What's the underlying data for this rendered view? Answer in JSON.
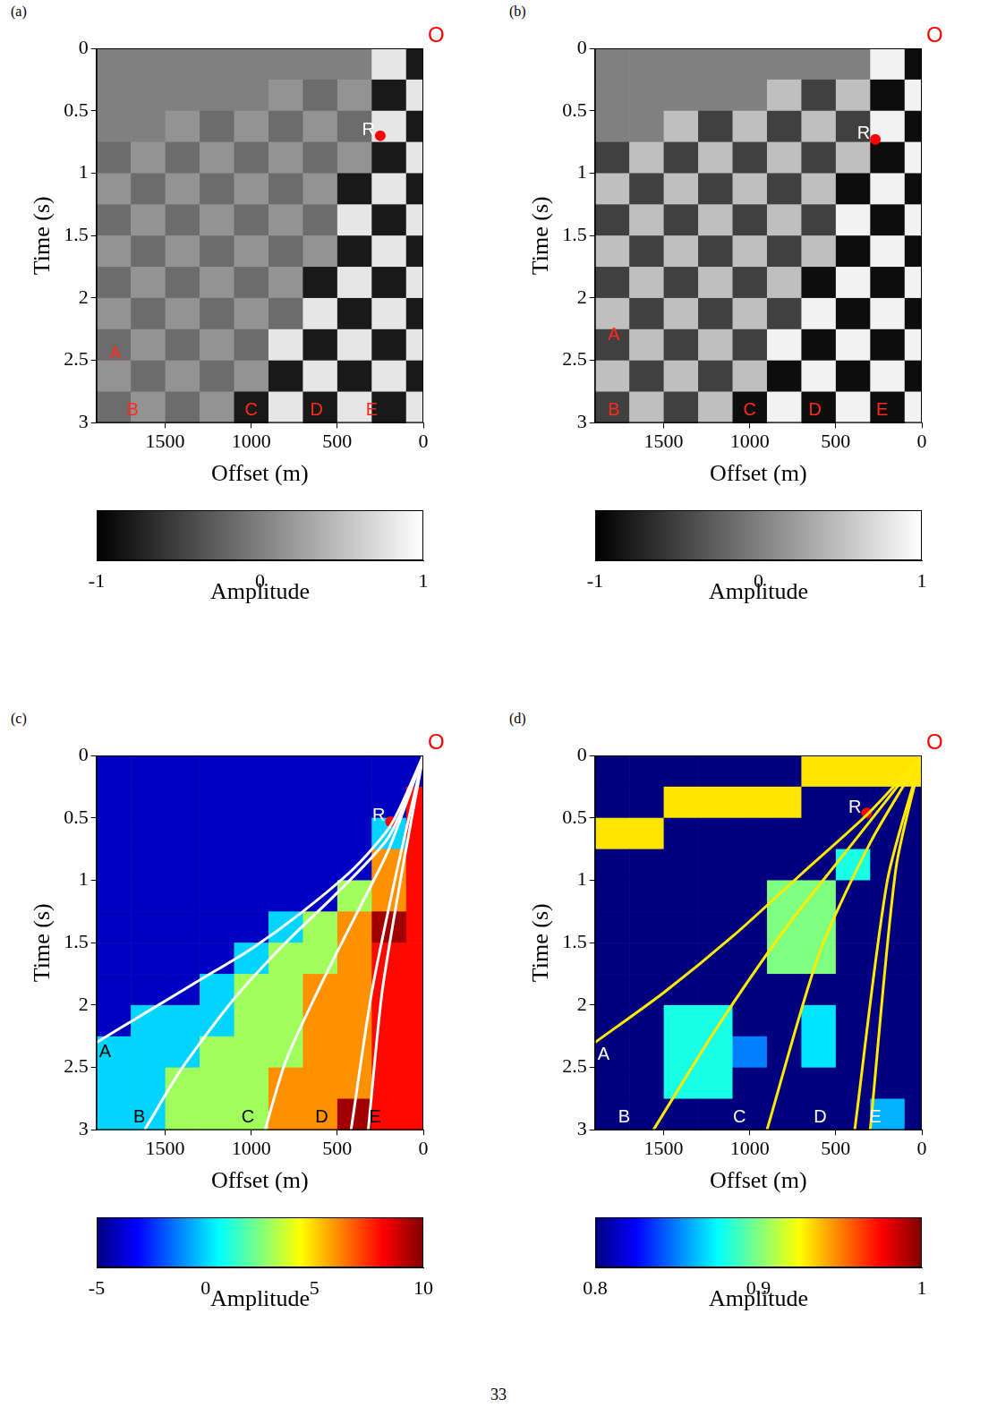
{
  "page_number": "33",
  "chart_data": [
    {
      "type": "heatmap",
      "title": "(a)",
      "x_label": "Offset (m)",
      "y_label": "Time (s)",
      "xlim": [
        1900,
        0
      ],
      "xticks": [
        1500,
        1000,
        500,
        0
      ],
      "ylim": [
        3,
        0
      ],
      "yticks": [
        0,
        0.5,
        1,
        1.5,
        2,
        2.5,
        3
      ],
      "x_edges": [
        1900,
        1700,
        1500,
        1300,
        1100,
        900,
        700,
        500,
        300,
        100,
        0
      ],
      "y_edges": [
        0,
        0.25,
        0.5,
        0.75,
        1,
        1.25,
        1.5,
        1.75,
        2,
        2.25,
        2.5,
        2.75,
        3
      ],
      "cells": [
        [
          0,
          0,
          0,
          0,
          0,
          0,
          0,
          0,
          0.8,
          -0.8
        ],
        [
          0,
          0,
          0,
          0,
          0,
          0.15,
          -0.15,
          0.15,
          -0.8,
          0.8
        ],
        [
          0,
          0,
          0.15,
          -0.15,
          0.15,
          -0.15,
          0.15,
          -0.15,
          0.8,
          -0.8
        ],
        [
          -0.15,
          0.15,
          -0.15,
          0.15,
          -0.15,
          0.15,
          -0.15,
          0.15,
          -0.8,
          0.8
        ],
        [
          0.15,
          -0.15,
          0.15,
          -0.15,
          0.15,
          -0.15,
          0.15,
          -0.8,
          0.8,
          -0.8
        ],
        [
          -0.15,
          0.15,
          -0.15,
          0.15,
          -0.15,
          0.15,
          -0.15,
          0.8,
          -0.8,
          0.8
        ],
        [
          0.15,
          -0.15,
          0.15,
          -0.15,
          0.15,
          -0.15,
          0.15,
          -0.8,
          0.8,
          -0.8
        ],
        [
          -0.15,
          0.15,
          -0.15,
          0.15,
          -0.15,
          0.15,
          -0.8,
          0.8,
          -0.8,
          0.8
        ],
        [
          0.15,
          -0.15,
          0.15,
          -0.15,
          0.15,
          -0.15,
          0.8,
          -0.8,
          0.8,
          -0.8
        ],
        [
          -0.15,
          0.15,
          -0.15,
          0.15,
          -0.15,
          0.8,
          -0.8,
          0.8,
          -0.8,
          0.8
        ],
        [
          0.15,
          -0.15,
          0.15,
          -0.15,
          0.15,
          -0.8,
          0.8,
          -0.8,
          0.8,
          -0.8
        ],
        [
          -0.15,
          0.15,
          -0.15,
          0.15,
          -0.8,
          0.8,
          -0.8,
          0.8,
          -0.8,
          0.8
        ]
      ],
      "colorbar": {
        "label": "Amplitude",
        "range": [
          -1,
          1
        ],
        "ticks": [
          -1,
          0,
          1
        ],
        "colors": [
          "#000000",
          "#ffffff"
        ]
      },
      "points": [
        {
          "label": "R",
          "x": 250,
          "y": 0.7,
          "color": "red"
        }
      ],
      "origin": {
        "label": "O",
        "x": 0,
        "y": 0,
        "color": "red"
      },
      "annotations": [
        {
          "text": "A",
          "x": 1790,
          "y": 2.45,
          "color": "#ff2a1a"
        },
        {
          "text": "B",
          "x": 1690,
          "y": 2.9,
          "color": "#ff2a1a"
        },
        {
          "text": "C",
          "x": 1000,
          "y": 2.9,
          "color": "#ff2a1a"
        },
        {
          "text": "D",
          "x": 620,
          "y": 2.9,
          "color": "#ff2a1a"
        },
        {
          "text": "E",
          "x": 300,
          "y": 2.9,
          "color": "#ff2a1a"
        }
      ]
    },
    {
      "type": "heatmap",
      "title": "(b)",
      "x_label": "Offset (m)",
      "y_label": "Time (s)",
      "xlim": [
        1900,
        0
      ],
      "xticks": [
        1500,
        1000,
        500,
        0
      ],
      "ylim": [
        3,
        0
      ],
      "yticks": [
        0,
        0.5,
        1,
        1.5,
        2,
        2.5,
        3
      ],
      "x_edges": [
        1900,
        1700,
        1500,
        1300,
        1100,
        900,
        700,
        500,
        300,
        100,
        0
      ],
      "y_edges": [
        0,
        0.25,
        0.5,
        0.75,
        1,
        1.25,
        1.5,
        1.75,
        2,
        2.25,
        2.5,
        2.75,
        3
      ],
      "cells": [
        [
          0,
          0,
          0,
          0,
          0,
          0,
          0,
          0,
          0.9,
          -0.9
        ],
        [
          0,
          0,
          0,
          0,
          0,
          0.5,
          -0.5,
          0.5,
          -0.9,
          0.9
        ],
        [
          0,
          0,
          0.5,
          -0.5,
          0.5,
          -0.5,
          0.5,
          -0.5,
          0.9,
          -0.9
        ],
        [
          -0.5,
          0.5,
          -0.5,
          0.5,
          -0.5,
          0.5,
          -0.5,
          0.5,
          -0.9,
          0.9
        ],
        [
          0.5,
          -0.5,
          0.5,
          -0.5,
          0.5,
          -0.5,
          0.5,
          -0.9,
          0.9,
          -0.9
        ],
        [
          -0.5,
          0.5,
          -0.5,
          0.5,
          -0.5,
          0.5,
          -0.5,
          0.9,
          -0.9,
          0.9
        ],
        [
          0.5,
          -0.5,
          0.5,
          -0.5,
          0.5,
          -0.5,
          0.5,
          -0.9,
          0.9,
          -0.9
        ],
        [
          -0.5,
          0.5,
          -0.5,
          0.5,
          -0.5,
          0.5,
          -0.9,
          0.9,
          -0.9,
          0.9
        ],
        [
          0.5,
          -0.5,
          0.5,
          -0.5,
          0.5,
          -0.5,
          0.9,
          -0.9,
          0.9,
          -0.9
        ],
        [
          -0.5,
          0.5,
          -0.5,
          0.5,
          -0.5,
          0.9,
          -0.9,
          0.9,
          -0.9,
          0.9
        ],
        [
          0.5,
          -0.5,
          0.5,
          -0.5,
          0.5,
          -0.9,
          0.9,
          -0.9,
          0.9,
          -0.9
        ],
        [
          -0.5,
          0.5,
          -0.5,
          0.5,
          -0.9,
          0.9,
          -0.9,
          0.9,
          -0.9,
          0.9
        ]
      ],
      "colorbar": {
        "label": "Amplitude",
        "range": [
          -1,
          1
        ],
        "ticks": [
          -1,
          0,
          1
        ],
        "colors": [
          "#000000",
          "#ffffff"
        ]
      },
      "points": [
        {
          "label": "R",
          "x": 270,
          "y": 0.73,
          "color": "red"
        }
      ],
      "origin": {
        "label": "O",
        "x": 0,
        "y": 0,
        "color": "red"
      },
      "annotations": [
        {
          "text": "A",
          "x": 1790,
          "y": 2.3,
          "color": "#ff2a1a"
        },
        {
          "text": "B",
          "x": 1790,
          "y": 2.9,
          "color": "#ff2a1a"
        },
        {
          "text": "C",
          "x": 1000,
          "y": 2.9,
          "color": "#ff2a1a"
        },
        {
          "text": "D",
          "x": 620,
          "y": 2.9,
          "color": "#ff2a1a"
        },
        {
          "text": "E",
          "x": 230,
          "y": 2.9,
          "color": "#ff2a1a"
        }
      ]
    },
    {
      "type": "heatmap",
      "title": "(c)",
      "x_label": "Offset (m)",
      "y_label": "Time (s)",
      "xlim": [
        1900,
        0
      ],
      "xticks": [
        1500,
        1000,
        500,
        0
      ],
      "ylim": [
        3,
        0
      ],
      "yticks": [
        0,
        0.5,
        1,
        1.5,
        2,
        2.5,
        3
      ],
      "x_edges": [
        1900,
        1700,
        1500,
        1300,
        1100,
        900,
        700,
        500,
        300,
        100,
        0
      ],
      "y_edges": [
        0,
        0.25,
        0.5,
        0.75,
        1,
        1.25,
        1.5,
        1.75,
        2,
        2.25,
        2.5,
        2.75,
        3
      ],
      "cells": [
        [
          -4,
          -4,
          -4,
          -4,
          -4,
          -4,
          -4,
          -4,
          -4,
          -4
        ],
        [
          -4,
          -4,
          -4,
          -4,
          -4,
          -4,
          -4,
          -4,
          -4,
          8
        ],
        [
          -4,
          -4,
          -4,
          -4,
          -4,
          -4,
          -4,
          -4,
          0,
          8
        ],
        [
          -4,
          -4,
          -4,
          -4,
          -4,
          -4,
          -4,
          -4,
          6,
          8
        ],
        [
          -4,
          -4,
          -4,
          -4,
          -4,
          -4,
          -4,
          3,
          6,
          8
        ],
        [
          -4,
          -4,
          -4,
          -4,
          -4,
          0,
          3,
          6,
          9.5,
          8
        ],
        [
          -4,
          -4,
          -4,
          -4,
          0,
          3,
          3,
          6,
          8,
          8
        ],
        [
          -4,
          -4,
          -4,
          0,
          3,
          3,
          6,
          6,
          8,
          8
        ],
        [
          -4,
          0,
          0,
          0,
          3,
          3,
          6,
          6,
          8,
          8
        ],
        [
          0,
          0,
          0,
          3,
          3,
          3,
          6,
          6,
          8,
          8
        ],
        [
          0,
          0,
          3,
          3,
          3,
          6,
          6,
          6,
          8,
          8
        ],
        [
          0,
          0,
          3,
          3,
          3,
          6,
          6,
          9.5,
          8,
          8
        ]
      ],
      "colorbar": {
        "label": "Amplitude",
        "range": [
          -5,
          10
        ],
        "ticks": [
          -5,
          0,
          5,
          10
        ],
        "colors": [
          "#00007f",
          "#0000ff",
          "#007fff",
          "#00ffff",
          "#7fff7f",
          "#ffff00",
          "#ff7f00",
          "#ff0000",
          "#7f0000"
        ]
      },
      "series": [
        {
          "name": "A",
          "color": "#ffffff",
          "x": [
            0,
            185,
            400,
            700,
            1000,
            1300,
            1600,
            1900
          ],
          "y": [
            0,
            0.55,
            0.9,
            1.25,
            1.55,
            1.8,
            2.05,
            2.3
          ]
        },
        {
          "name": "B",
          "color": "#ffffff",
          "x": [
            0,
            200,
            500,
            800,
            1100,
            1400,
            1620
          ],
          "y": [
            0,
            0.65,
            1.1,
            1.5,
            1.95,
            2.5,
            3
          ]
        },
        {
          "name": "C",
          "color": "#ffffff",
          "x": [
            0,
            200,
            400,
            600,
            800,
            920
          ],
          "y": [
            0,
            0.75,
            1.3,
            1.85,
            2.45,
            3
          ]
        },
        {
          "name": "D",
          "color": "#ffffff",
          "x": [
            0,
            150,
            300,
            420
          ],
          "y": [
            0,
            0.9,
            1.9,
            3
          ]
        },
        {
          "name": "E",
          "color": "#ffffff",
          "x": [
            0,
            120,
            240,
            320
          ],
          "y": [
            0,
            0.9,
            1.9,
            3
          ]
        }
      ],
      "points": [
        {
          "label": "R",
          "x": 190,
          "y": 0.53,
          "color": "red"
        }
      ],
      "origin": {
        "label": "O",
        "x": 0,
        "y": 0,
        "color": "red"
      },
      "annotations": [
        {
          "text": "A",
          "x": 1850,
          "y": 2.38,
          "color": "#000000"
        },
        {
          "text": "B",
          "x": 1650,
          "y": 2.9,
          "color": "#000000"
        },
        {
          "text": "C",
          "x": 1020,
          "y": 2.9,
          "color": "#000000"
        },
        {
          "text": "D",
          "x": 590,
          "y": 2.9,
          "color": "#000000"
        },
        {
          "text": "E",
          "x": 280,
          "y": 2.9,
          "color": "#000000"
        }
      ]
    },
    {
      "type": "heatmap",
      "title": "(d)",
      "x_label": "Offset (m)",
      "y_label": "Time (s)",
      "xlim": [
        1900,
        0
      ],
      "xticks": [
        1500,
        1000,
        500,
        0
      ],
      "ylim": [
        3,
        0
      ],
      "yticks": [
        0,
        0.5,
        1,
        1.5,
        2,
        2.5,
        3
      ],
      "x_edges": [
        1900,
        1700,
        1500,
        1300,
        1100,
        900,
        700,
        500,
        300,
        100,
        0
      ],
      "y_edges": [
        0,
        0.25,
        0.5,
        0.75,
        1,
        1.25,
        1.5,
        1.75,
        2,
        2.25,
        2.5,
        2.75,
        3
      ],
      "cells": [
        [
          0.75,
          0.75,
          0.75,
          0.75,
          0.75,
          0.75,
          0.93,
          0.93,
          0.93,
          0.93
        ],
        [
          0.75,
          0.75,
          0.93,
          0.93,
          0.93,
          0.93,
          0.75,
          0.75,
          0.75,
          0.75
        ],
        [
          0.93,
          0.93,
          0.75,
          0.75,
          0.75,
          0.75,
          0.75,
          0.75,
          0.75,
          0.75
        ],
        [
          0.75,
          0.75,
          0.75,
          0.75,
          0.75,
          0.75,
          0.75,
          0.88,
          0.75,
          0.75
        ],
        [
          0.75,
          0.75,
          0.75,
          0.75,
          0.75,
          0.9,
          0.9,
          0.75,
          0.75,
          0.75
        ],
        [
          0.75,
          0.75,
          0.75,
          0.75,
          0.75,
          0.9,
          0.9,
          0.75,
          0.75,
          0.75
        ],
        [
          0.75,
          0.75,
          0.75,
          0.75,
          0.75,
          0.9,
          0.9,
          0.75,
          0.75,
          0.75
        ],
        [
          0.75,
          0.75,
          0.75,
          0.75,
          0.75,
          0.75,
          0.75,
          0.75,
          0.75,
          0.75
        ],
        [
          0.75,
          0.75,
          0.88,
          0.88,
          0.75,
          0.75,
          0.87,
          0.75,
          0.75,
          0.75
        ],
        [
          0.75,
          0.75,
          0.88,
          0.88,
          0.85,
          0.75,
          0.87,
          0.75,
          0.75,
          0.75
        ],
        [
          0.75,
          0.75,
          0.88,
          0.88,
          0.75,
          0.75,
          0.75,
          0.75,
          0.75,
          0.75
        ],
        [
          0.75,
          0.75,
          0.75,
          0.75,
          0.75,
          0.75,
          0.75,
          0.75,
          0.86,
          0.75
        ]
      ],
      "colorbar": {
        "label": "Amplitude",
        "range": [
          0.8,
          1
        ],
        "ticks": [
          0.8,
          0.9,
          1
        ],
        "colors": [
          "#00007f",
          "#0000ff",
          "#007fff",
          "#00ffff",
          "#7fff7f",
          "#ffff00",
          "#ff7f00",
          "#ff0000",
          "#7f0000"
        ]
      },
      "series": [
        {
          "name": "A",
          "color": "#ffeb00",
          "x": [
            0,
            300,
            700,
            1100,
            1500,
            1900
          ],
          "y": [
            0,
            0.45,
            0.95,
            1.45,
            1.9,
            2.3
          ]
        },
        {
          "name": "B",
          "color": "#ffeb00",
          "x": [
            0,
            400,
            800,
            1200,
            1560
          ],
          "y": [
            0,
            0.7,
            1.4,
            2.2,
            3
          ]
        },
        {
          "name": "C",
          "color": "#ffeb00",
          "x": [
            0,
            300,
            600,
            900
          ],
          "y": [
            0,
            0.7,
            1.6,
            3
          ]
        },
        {
          "name": "D",
          "color": "#ffeb00",
          "x": [
            0,
            200,
            390
          ],
          "y": [
            0,
            1,
            3
          ]
        },
        {
          "name": "E",
          "color": "#ffeb00",
          "x": [
            0,
            150,
            300
          ],
          "y": [
            0,
            0.9,
            3
          ]
        }
      ],
      "points": [
        {
          "label": "R",
          "x": 320,
          "y": 0.46,
          "color": "red"
        }
      ],
      "origin": {
        "label": "O",
        "x": 0,
        "y": 0,
        "color": "red"
      },
      "annotations": [
        {
          "text": "A",
          "x": 1850,
          "y": 2.4,
          "color": "#ffffff"
        },
        {
          "text": "B",
          "x": 1730,
          "y": 2.9,
          "color": "#ffffff"
        },
        {
          "text": "C",
          "x": 1060,
          "y": 2.9,
          "color": "#ffffff"
        },
        {
          "text": "D",
          "x": 590,
          "y": 2.9,
          "color": "#ffffff"
        },
        {
          "text": "E",
          "x": 270,
          "y": 2.9,
          "color": "#ffffff"
        }
      ]
    }
  ]
}
